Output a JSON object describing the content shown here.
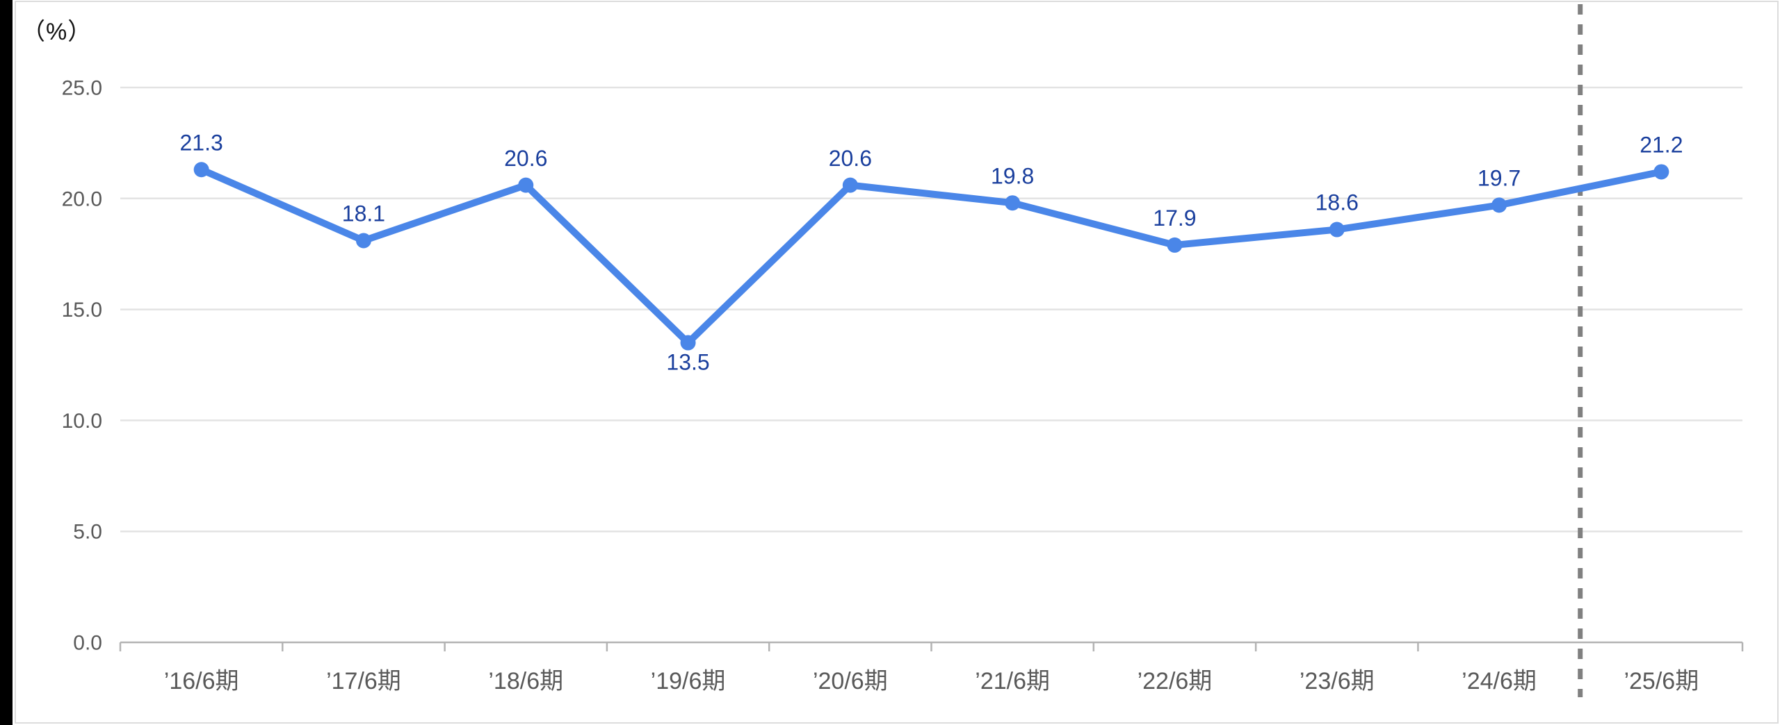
{
  "unit_label": "（%）",
  "colors": {
    "line": "#4a86e8",
    "marker": "#4a86e8",
    "data_label": "#1a3f9d",
    "axis_text": "#595959",
    "unit_text": "#111111",
    "gridline": "#e3e3e3",
    "baseline": "#b3b3b3",
    "tick": "#b3b3b3",
    "separator": "#808080",
    "card_border": "#dcdcdc",
    "left_strip": "#000000"
  },
  "chart_data": {
    "type": "line",
    "title": "",
    "unit_label": "（%）",
    "categories": [
      "’16/6期",
      "’17/6期",
      "’18/6期",
      "’19/6期",
      "’20/6期",
      "’21/6期",
      "’22/6期",
      "’23/6期",
      "’24/6期",
      "’25/6期"
    ],
    "values": [
      21.3,
      18.1,
      20.6,
      13.5,
      20.6,
      19.8,
      17.9,
      18.6,
      19.7,
      21.2
    ],
    "data_labels": [
      "21.3",
      "18.1",
      "20.6",
      "13.5",
      "20.6",
      "19.8",
      "17.9",
      "18.6",
      "19.7",
      "21.2"
    ],
    "label_position": "above",
    "label_below_indices": [
      3
    ],
    "ylim": [
      0,
      25
    ],
    "yticks": [
      0,
      5,
      10,
      15,
      20,
      25
    ],
    "ytick_labels": [
      "0.0",
      "5.0",
      "10.0",
      "15.0",
      "20.0",
      "25.0"
    ],
    "grid": true,
    "legend": "none",
    "separator_after_category_index": 8,
    "separator_style": "dashed-vertical"
  }
}
